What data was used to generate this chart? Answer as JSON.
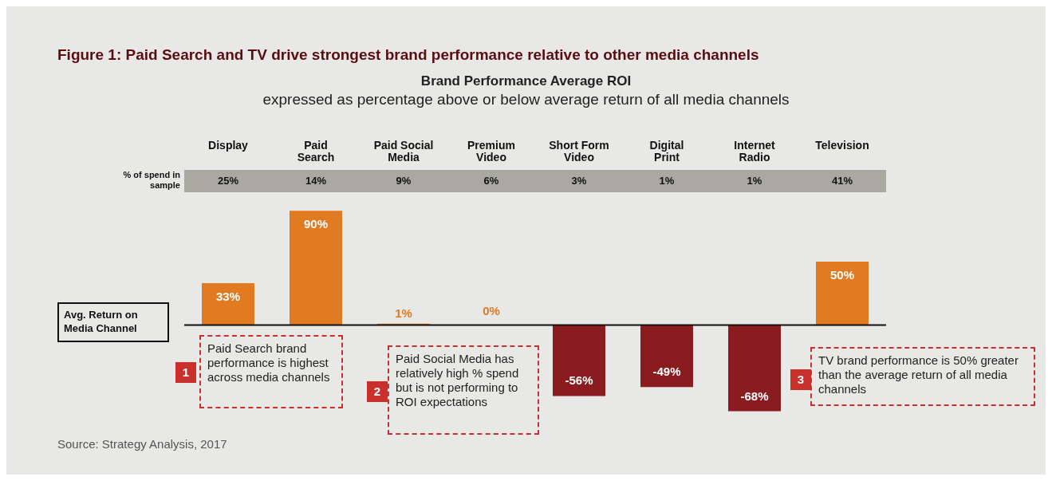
{
  "chart_data": {
    "type": "bar",
    "title": "Figure 1: Paid Search and TV drive strongest brand performance relative to other media channels",
    "subtitle": "Brand Performance Average ROI",
    "categories": [
      "Display",
      "Paid Search",
      "Paid Social Media",
      "Premium Video",
      "Short Form Video",
      "Digital Print",
      "Internet Radio",
      "Television"
    ],
    "values": [
      33,
      90,
      1,
      0,
      -56,
      -49,
      -68,
      50
    ],
    "colors": [
      "#e07b22",
      "#e07b22",
      "#e07b22",
      "#e07b22",
      "#8a1c1f",
      "#8a1c1f",
      "#8a1c1f",
      "#e07b22"
    ],
    "value_labels": [
      "33%",
      "90%",
      "1%",
      "0%",
      "-56%",
      "-49%",
      "-68%",
      "50%"
    ],
    "ref_lines": [
      {
        "axis": "y",
        "value": 0,
        "label": "Avg. Return on Media Channel",
        "color": "#111111"
      }
    ],
    "annotations": [
      "expressed as percentage above or below average return of all media channels",
      "% of spend in sample",
      "25%",
      "14%",
      "9%",
      "6%",
      "3%",
      "1%",
      "1%",
      "41%",
      "1",
      "Paid Search brand performance is highest across media channels",
      "2",
      "Paid Social Media has relatively high % spend but is not performing to ROI expectations",
      "3",
      "TV brand performance is 50% greater than the average return of all media channels",
      "Source: Strategy Analysis, 2017"
    ],
    "grid": false,
    "legend": false
  }
}
